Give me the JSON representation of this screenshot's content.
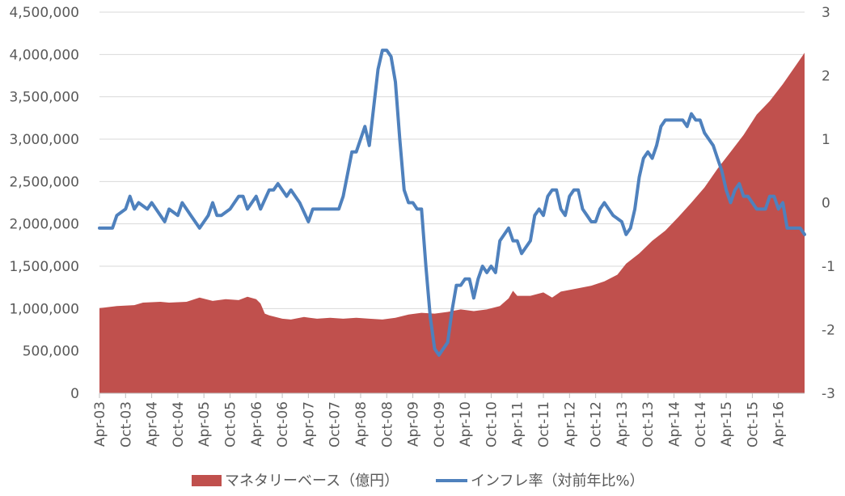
{
  "chart_data": {
    "type": "area+line",
    "x_tick_labels": [
      "Apr-03",
      "Oct-03",
      "Apr-04",
      "Oct-04",
      "Apr-05",
      "Oct-05",
      "Apr-06",
      "Oct-06",
      "Apr-07",
      "Oct-07",
      "Apr-08",
      "Oct-08",
      "Apr-09",
      "Oct-09",
      "Apr-10",
      "Oct-10",
      "Apr-11",
      "Oct-11",
      "Apr-12",
      "Oct-12",
      "Apr-13",
      "Oct-13",
      "Apr-14",
      "Oct-14",
      "Apr-15",
      "Oct-15",
      "Apr-16"
    ],
    "y_left": {
      "min": 0,
      "max": 4500000,
      "step": 500000,
      "tick_labels": [
        "0",
        "500,000",
        "1,000,000",
        "1,500,000",
        "2,000,000",
        "2,500,000",
        "3,000,000",
        "3,500,000",
        "4,000,000",
        "4,500,000"
      ]
    },
    "y_right": {
      "min": -3,
      "max": 3,
      "step": 1,
      "tick_labels": [
        "-3",
        "-2",
        "-1",
        "0",
        "1",
        "2",
        "3"
      ]
    },
    "grid": "horizontal",
    "legend_position": "bottom",
    "series": [
      {
        "name": "マネタリーベース（億円）",
        "axis": "left",
        "type": "area",
        "color": "#c0504d",
        "points": [
          [
            "2003-04",
            1005000
          ],
          [
            "2003-08",
            1030000
          ],
          [
            "2003-12",
            1040000
          ],
          [
            "2004-02",
            1070000
          ],
          [
            "2004-06",
            1080000
          ],
          [
            "2004-08",
            1070000
          ],
          [
            "2004-12",
            1080000
          ],
          [
            "2005-03",
            1130000
          ],
          [
            "2005-06",
            1090000
          ],
          [
            "2005-09",
            1110000
          ],
          [
            "2005-12",
            1100000
          ],
          [
            "2006-02",
            1140000
          ],
          [
            "2006-04",
            1110000
          ],
          [
            "2006-05",
            1060000
          ],
          [
            "2006-06",
            940000
          ],
          [
            "2006-07",
            920000
          ],
          [
            "2006-10",
            880000
          ],
          [
            "2006-12",
            870000
          ],
          [
            "2007-03",
            900000
          ],
          [
            "2007-06",
            880000
          ],
          [
            "2007-09",
            890000
          ],
          [
            "2007-12",
            880000
          ],
          [
            "2008-03",
            890000
          ],
          [
            "2008-06",
            880000
          ],
          [
            "2008-09",
            870000
          ],
          [
            "2008-12",
            890000
          ],
          [
            "2009-03",
            930000
          ],
          [
            "2009-06",
            950000
          ],
          [
            "2009-09",
            940000
          ],
          [
            "2009-12",
            960000
          ],
          [
            "2010-03",
            990000
          ],
          [
            "2010-06",
            970000
          ],
          [
            "2010-09",
            990000
          ],
          [
            "2010-12",
            1030000
          ],
          [
            "2011-02",
            1120000
          ],
          [
            "2011-03",
            1210000
          ],
          [
            "2011-04",
            1150000
          ],
          [
            "2011-07",
            1150000
          ],
          [
            "2011-10",
            1190000
          ],
          [
            "2011-12",
            1130000
          ],
          [
            "2012-02",
            1200000
          ],
          [
            "2012-06",
            1240000
          ],
          [
            "2012-09",
            1270000
          ],
          [
            "2012-12",
            1320000
          ],
          [
            "2013-03",
            1400000
          ],
          [
            "2013-05",
            1530000
          ],
          [
            "2013-08",
            1650000
          ],
          [
            "2013-11",
            1800000
          ],
          [
            "2014-02",
            1920000
          ],
          [
            "2014-05",
            2080000
          ],
          [
            "2014-08",
            2250000
          ],
          [
            "2014-11",
            2430000
          ],
          [
            "2015-02",
            2650000
          ],
          [
            "2015-05",
            2850000
          ],
          [
            "2015-08",
            3050000
          ],
          [
            "2015-11",
            3290000
          ],
          [
            "2016-02",
            3450000
          ],
          [
            "2016-05",
            3650000
          ],
          [
            "2016-08",
            3870000
          ],
          [
            "2016-10",
            4020000
          ]
        ]
      },
      {
        "name": "インフレ率（対前年比%）",
        "axis": "right",
        "type": "line",
        "color": "#4f81bd",
        "points": [
          [
            "2003-04",
            -0.4
          ],
          [
            "2003-07",
            -0.4
          ],
          [
            "2003-08",
            -0.2
          ],
          [
            "2003-10",
            -0.1
          ],
          [
            "2003-11",
            0.1
          ],
          [
            "2003-12",
            -0.1
          ],
          [
            "2004-01",
            0.0
          ],
          [
            "2004-03",
            -0.1
          ],
          [
            "2004-04",
            0.0
          ],
          [
            "2004-06",
            -0.2
          ],
          [
            "2004-07",
            -0.3
          ],
          [
            "2004-08",
            -0.1
          ],
          [
            "2004-10",
            -0.2
          ],
          [
            "2004-11",
            0.0
          ],
          [
            "2005-01",
            -0.2
          ],
          [
            "2005-03",
            -0.4
          ],
          [
            "2005-05",
            -0.2
          ],
          [
            "2005-06",
            0.0
          ],
          [
            "2005-07",
            -0.2
          ],
          [
            "2005-08",
            -0.2
          ],
          [
            "2005-10",
            -0.1
          ],
          [
            "2005-12",
            0.1
          ],
          [
            "2006-01",
            0.1
          ],
          [
            "2006-02",
            -0.1
          ],
          [
            "2006-04",
            0.1
          ],
          [
            "2006-05",
            -0.1
          ],
          [
            "2006-07",
            0.2
          ],
          [
            "2006-08",
            0.2
          ],
          [
            "2006-09",
            0.3
          ],
          [
            "2006-11",
            0.1
          ],
          [
            "2006-12",
            0.2
          ],
          [
            "2007-02",
            0.0
          ],
          [
            "2007-04",
            -0.3
          ],
          [
            "2007-05",
            -0.1
          ],
          [
            "2007-11",
            -0.1
          ],
          [
            "2007-12",
            0.1
          ],
          [
            "2008-02",
            0.8
          ],
          [
            "2008-03",
            0.8
          ],
          [
            "2008-05",
            1.2
          ],
          [
            "2008-06",
            0.9
          ],
          [
            "2008-07",
            1.5
          ],
          [
            "2008-08",
            2.1
          ],
          [
            "2008-09",
            2.4
          ],
          [
            "2008-10",
            2.4
          ],
          [
            "2008-11",
            2.3
          ],
          [
            "2008-12",
            1.9
          ],
          [
            "2009-01",
            1.0
          ],
          [
            "2009-02",
            0.2
          ],
          [
            "2009-03",
            0.0
          ],
          [
            "2009-04",
            0.0
          ],
          [
            "2009-05",
            -0.1
          ],
          [
            "2009-06",
            -0.1
          ],
          [
            "2009-07",
            -1.0
          ],
          [
            "2009-08",
            -1.8
          ],
          [
            "2009-09",
            -2.3
          ],
          [
            "2009-10",
            -2.4
          ],
          [
            "2009-11",
            -2.3
          ],
          [
            "2009-12",
            -2.2
          ],
          [
            "2010-01",
            -1.7
          ],
          [
            "2010-02",
            -1.3
          ],
          [
            "2010-03",
            -1.3
          ],
          [
            "2010-04",
            -1.2
          ],
          [
            "2010-05",
            -1.2
          ],
          [
            "2010-06",
            -1.5
          ],
          [
            "2010-07",
            -1.2
          ],
          [
            "2010-08",
            -1.0
          ],
          [
            "2010-09",
            -1.1
          ],
          [
            "2010-10",
            -1.0
          ],
          [
            "2010-11",
            -1.1
          ],
          [
            "2010-12",
            -0.6
          ],
          [
            "2011-02",
            -0.4
          ],
          [
            "2011-03",
            -0.6
          ],
          [
            "2011-04",
            -0.6
          ],
          [
            "2011-05",
            -0.8
          ],
          [
            "2011-07",
            -0.6
          ],
          [
            "2011-08",
            -0.2
          ],
          [
            "2011-09",
            -0.1
          ],
          [
            "2011-10",
            -0.2
          ],
          [
            "2011-11",
            0.1
          ],
          [
            "2011-12",
            0.2
          ],
          [
            "2012-01",
            0.2
          ],
          [
            "2012-02",
            -0.1
          ],
          [
            "2012-03",
            -0.2
          ],
          [
            "2012-04",
            0.1
          ],
          [
            "2012-05",
            0.2
          ],
          [
            "2012-06",
            0.2
          ],
          [
            "2012-07",
            -0.1
          ],
          [
            "2012-08",
            -0.2
          ],
          [
            "2012-09",
            -0.3
          ],
          [
            "2012-10",
            -0.3
          ],
          [
            "2012-11",
            -0.1
          ],
          [
            "2012-12",
            0.0
          ],
          [
            "2013-01",
            -0.1
          ],
          [
            "2013-02",
            -0.2
          ],
          [
            "2013-04",
            -0.3
          ],
          [
            "2013-05",
            -0.5
          ],
          [
            "2013-06",
            -0.4
          ],
          [
            "2013-07",
            -0.1
          ],
          [
            "2013-08",
            0.4
          ],
          [
            "2013-09",
            0.7
          ],
          [
            "2013-10",
            0.8
          ],
          [
            "2013-11",
            0.7
          ],
          [
            "2013-12",
            0.9
          ],
          [
            "2014-01",
            1.2
          ],
          [
            "2014-02",
            1.3
          ],
          [
            "2014-06",
            1.3
          ],
          [
            "2014-07",
            1.2
          ],
          [
            "2014-08",
            1.4
          ],
          [
            "2014-09",
            1.3
          ],
          [
            "2014-10",
            1.3
          ],
          [
            "2014-11",
            1.1
          ],
          [
            "2014-12",
            1.0
          ],
          [
            "2015-01",
            0.9
          ],
          [
            "2015-02",
            0.7
          ],
          [
            "2015-03",
            0.5
          ],
          [
            "2015-04",
            0.2
          ],
          [
            "2015-05",
            0.0
          ],
          [
            "2015-06",
            0.2
          ],
          [
            "2015-07",
            0.3
          ],
          [
            "2015-08",
            0.1
          ],
          [
            "2015-09",
            0.1
          ],
          [
            "2015-10",
            0.0
          ],
          [
            "2015-11",
            -0.1
          ],
          [
            "2015-12",
            -0.1
          ],
          [
            "2016-01",
            -0.1
          ],
          [
            "2016-02",
            0.1
          ],
          [
            "2016-03",
            0.1
          ],
          [
            "2016-04",
            -0.1
          ],
          [
            "2016-05",
            0.0
          ],
          [
            "2016-06",
            -0.4
          ],
          [
            "2016-07",
            -0.4
          ],
          [
            "2016-08",
            -0.4
          ],
          [
            "2016-09",
            -0.4
          ],
          [
            "2016-10",
            -0.5
          ]
        ]
      }
    ]
  }
}
